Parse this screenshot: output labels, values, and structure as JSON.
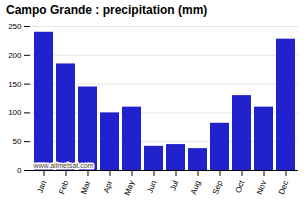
{
  "chart_data": {
    "type": "bar",
    "title": "Campo Grande : precipitation (mm)",
    "categories": [
      "Jan",
      "Feb",
      "Mar",
      "Apr",
      "May",
      "Jun",
      "Jul",
      "Aug",
      "Sep",
      "Oct",
      "Nov",
      "Dec"
    ],
    "values": [
      240,
      185,
      145,
      100,
      110,
      42,
      45,
      38,
      82,
      130,
      110,
      228
    ],
    "color": "#2222cc",
    "ylim": [
      0,
      250
    ],
    "yticks": [
      0,
      50,
      100,
      150,
      200,
      250
    ],
    "grid": true,
    "annotations": [
      "www.allmetsat.com"
    ]
  }
}
